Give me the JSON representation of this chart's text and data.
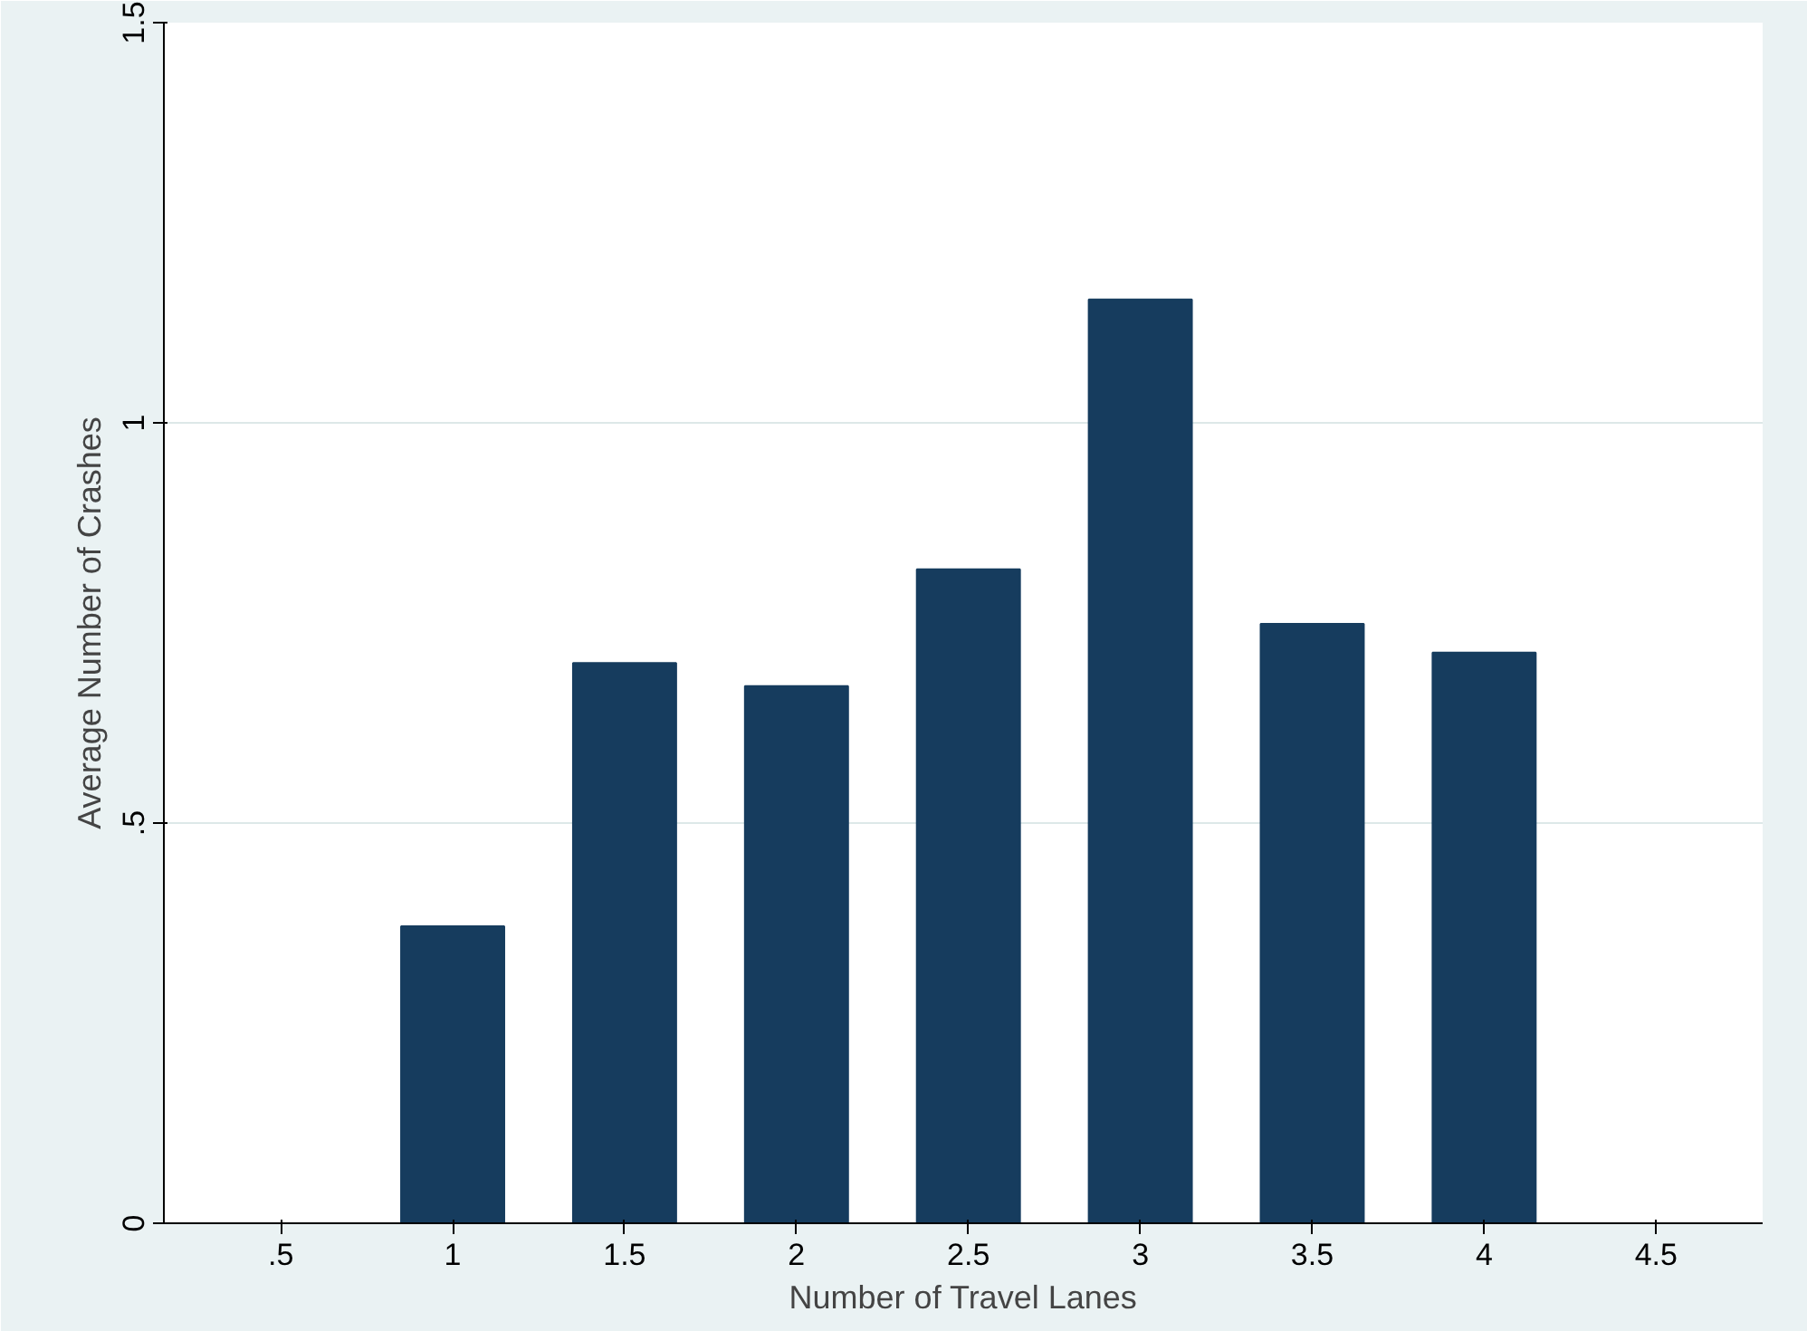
{
  "chart_data": {
    "type": "bar",
    "xlabel": "Number of Travel Lanes",
    "ylabel": "Average Number of Crashes",
    "x": [
      1,
      1.5,
      2,
      2.5,
      3,
      3.5,
      4
    ],
    "values": [
      0.371,
      0.7,
      0.671,
      0.817,
      1.154,
      0.749,
      0.713
    ],
    "color": "#163c5e",
    "xlim": [
      0.16,
      4.81
    ],
    "ylim": [
      0,
      1.5
    ],
    "xticks": [
      {
        "value": 0.5,
        "label": ".5"
      },
      1,
      1.5,
      2,
      2.5,
      3,
      3.5,
      4,
      4.5
    ],
    "yticks": [
      0,
      {
        "value": 0.5,
        "label": ".5"
      },
      1,
      1.5
    ],
    "grid": "y"
  }
}
